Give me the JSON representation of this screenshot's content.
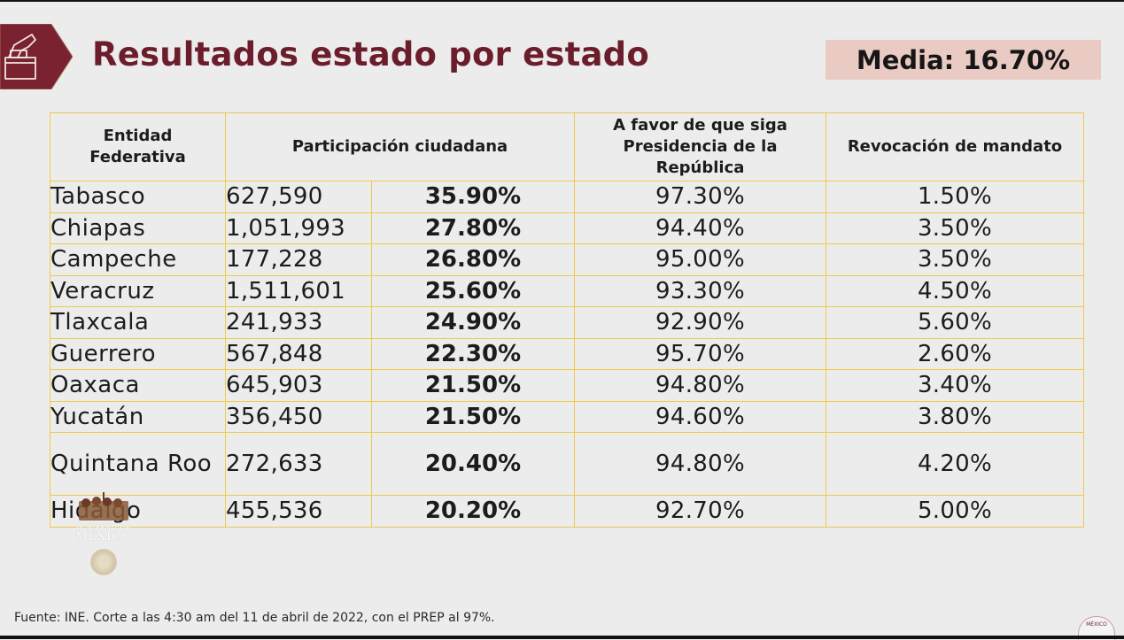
{
  "header": {
    "title": "Resultados estado por estado",
    "icon": "ballot-box-icon",
    "media_label": "Media: 16.70%"
  },
  "colors": {
    "brand": "#6b1d2b",
    "media_bg": "#e9cbc3",
    "grid": "#f0c94a",
    "background": "#ececec"
  },
  "table": {
    "headers": {
      "entidad": "Entidad Federativa",
      "participacion": "Participación ciudadana",
      "favor": "A favor de que siga Presidencia de la República",
      "revocacion": "Revocación de mandato"
    },
    "rows": [
      {
        "state": "Tabasco",
        "votes": "627,590",
        "participation": "35.90%",
        "favor": "97.30%",
        "revocation": "1.50%"
      },
      {
        "state": "Chiapas",
        "votes": "1,051,993",
        "participation": "27.80%",
        "favor": "94.40%",
        "revocation": "3.50%"
      },
      {
        "state": "Campeche",
        "votes": "177,228",
        "participation": "26.80%",
        "favor": "95.00%",
        "revocation": "3.50%"
      },
      {
        "state": "Veracruz",
        "votes": "1,511,601",
        "participation": "25.60%",
        "favor": "93.30%",
        "revocation": "4.50%"
      },
      {
        "state": "Tlaxcala",
        "votes": "241,933",
        "participation": "24.90%",
        "favor": "92.90%",
        "revocation": "5.60%"
      },
      {
        "state": "Guerrero",
        "votes": "567,848",
        "participation": "22.30%",
        "favor": "95.70%",
        "revocation": "2.60%"
      },
      {
        "state": "Oaxaca",
        "votes": "645,903",
        "participation": "21.50%",
        "favor": "94.80%",
        "revocation": "3.40%"
      },
      {
        "state": "Yucatán",
        "votes": "356,450",
        "participation": "21.50%",
        "favor": "94.60%",
        "revocation": "3.80%"
      },
      {
        "state": "Quintana Roo",
        "votes": "272,633",
        "participation": "20.40%",
        "favor": "94.80%",
        "revocation": "4.20%"
      },
      {
        "state": "Hidalgo",
        "votes": "455,536",
        "participation": "20.20%",
        "favor": "92.70%",
        "revocation": "5.00%"
      }
    ]
  },
  "logo": {
    "line1": "GOBIERNO DE",
    "line2": "MÉXICO"
  },
  "footer": {
    "source": "Fuente: INE. Corte a las 4:30 am del 11 de abril de 2022, con el PREP al 97%.",
    "corner_logo": "MÉXICO"
  }
}
